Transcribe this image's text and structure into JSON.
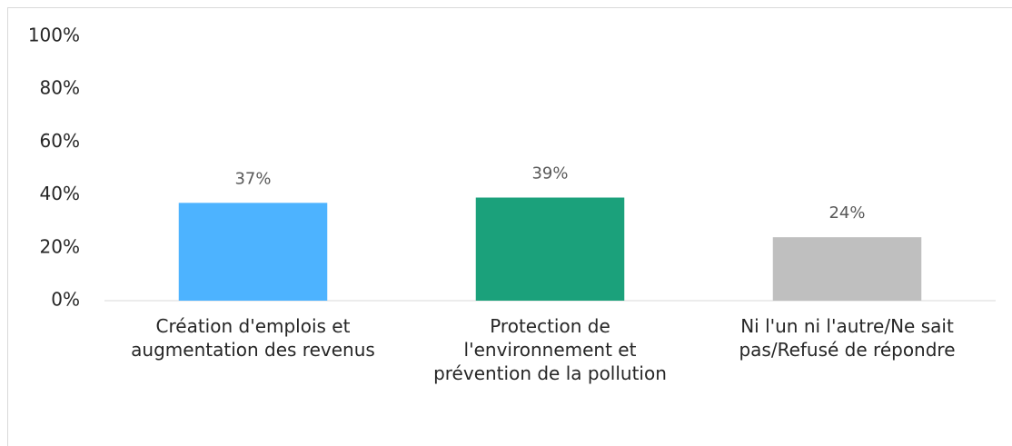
{
  "chart_data": {
    "type": "bar",
    "categories": [
      "Création d'emplois et augmentation des revenus",
      "Protection de l'environnement et prévention de la pollution",
      "Ni l'un ni l'autre/Ne sait pas/Refusé de répondre"
    ],
    "values": [
      37,
      39,
      24
    ],
    "value_labels": [
      "37%",
      "39%",
      "24%"
    ],
    "colors": [
      "#4db3ff",
      "#1ba17b",
      "#bfbfbf"
    ],
    "ylim": [
      0,
      100
    ],
    "yticks": [
      {
        "value": 0,
        "label": "0%"
      },
      {
        "value": 20,
        "label": "20%"
      },
      {
        "value": 40,
        "label": "40%"
      },
      {
        "value": 60,
        "label": "60%"
      },
      {
        "value": 80,
        "label": "80%"
      },
      {
        "value": 100,
        "label": "100%"
      }
    ],
    "grid": false
  }
}
